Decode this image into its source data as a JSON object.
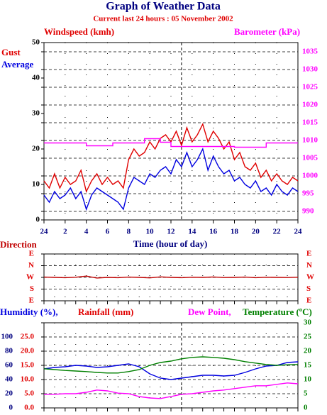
{
  "title": "Graph of Weather Data",
  "subtitle": "Current last 24 hours : 05 November 2002",
  "chart_data": [
    {
      "type": "line",
      "ylabel": "Windspeed (kmh)",
      "xlabel": "Time (hour of day)",
      "xlim": [
        0,
        24
      ],
      "xticks": [
        {
          "value": 0,
          "label": "24"
        },
        2,
        4,
        6,
        8,
        10,
        12,
        14,
        16,
        18,
        20,
        22,
        {
          "value": 24,
          "label": "24"
        }
      ],
      "ylim": [
        0,
        50
      ],
      "yticks": [
        0,
        10,
        20,
        30,
        40,
        50
      ],
      "y2lim": [
        987.6,
        1037.6
      ],
      "y2ticks": [
        990,
        995,
        1000,
        1005,
        1010,
        1015,
        1020,
        1025,
        1030,
        1035
      ],
      "grid": true,
      "marker_x": 13,
      "x": [
        0,
        0.5,
        1,
        1.5,
        2,
        2.5,
        3,
        3.5,
        4,
        4.5,
        5,
        5.5,
        6,
        6.5,
        7,
        7.5,
        8,
        8.5,
        9,
        9.5,
        10,
        10.5,
        11,
        11.5,
        12,
        12.5,
        13,
        13.5,
        14,
        14.5,
        15,
        15.5,
        16,
        16.5,
        17,
        17.5,
        18,
        18.5,
        19,
        19.5,
        20,
        20.5,
        21,
        21.5,
        22,
        22.5,
        23,
        23.5,
        24
      ],
      "series": [
        {
          "name": "Gust",
          "color": "#e00000",
          "values": [
            11,
            9,
            13,
            9,
            12,
            10,
            11,
            14,
            8,
            11,
            13,
            10,
            12,
            10,
            11,
            9,
            17,
            20,
            18,
            19,
            22,
            20,
            23,
            24,
            22,
            25,
            21,
            26,
            22,
            24,
            27,
            22,
            25,
            23,
            20,
            22,
            17,
            19,
            15,
            14,
            16,
            12,
            14,
            11,
            13,
            11,
            10,
            12,
            11
          ]
        },
        {
          "name": "Average",
          "color": "#0000e0",
          "values": [
            7,
            5,
            8,
            6,
            7,
            9,
            6,
            8,
            3,
            7,
            9,
            8,
            7,
            6,
            5,
            3,
            9,
            12,
            11,
            10,
            13,
            12,
            14,
            15,
            13,
            17,
            15,
            19,
            15,
            17,
            20,
            14,
            18,
            15,
            13,
            14,
            11,
            12,
            10,
            9,
            11,
            8,
            9,
            7,
            10,
            8,
            7,
            9,
            8
          ]
        },
        {
          "name": "Barometer (kPa)",
          "color": "#ff00ff",
          "axis": "y2",
          "x": [
            0,
            4,
            4,
            6.5,
            6.5,
            9.5,
            9.5,
            11,
            11,
            12,
            12,
            18,
            18,
            21,
            21,
            24
          ],
          "values": [
            1009.3,
            1009.3,
            1008.5,
            1008.5,
            1009.3,
            1009.3,
            1010.5,
            1010.5,
            1009.5,
            1009.5,
            1008.3,
            1008.3,
            1008.1,
            1008.1,
            1009.3,
            1009.3
          ]
        }
      ]
    },
    {
      "type": "line",
      "xlim": [
        0,
        24
      ],
      "xticks": [
        0,
        1,
        2,
        3,
        4,
        5,
        6,
        7,
        8,
        9,
        10,
        11,
        12,
        13,
        14,
        15,
        16,
        17,
        18,
        19,
        20,
        21,
        22,
        23,
        24
      ],
      "ylim": [
        90,
        450
      ],
      "yticks": [
        {
          "value": 90,
          "label": "E"
        },
        {
          "value": 180,
          "label": "S"
        },
        {
          "value": 270,
          "label": "W"
        },
        {
          "value": 360,
          "label": "N"
        },
        {
          "value": 450,
          "label": "E"
        }
      ],
      "grid": true,
      "x": [
        0,
        1,
        2,
        3,
        4,
        5,
        6,
        7,
        8,
        9,
        10,
        11,
        12,
        13,
        14,
        15,
        16,
        17,
        18,
        19,
        20,
        21,
        22,
        23,
        24
      ],
      "series": [
        {
          "name": "Direction",
          "color": "#c00000",
          "values": [
            272,
            270,
            268,
            271,
            280,
            265,
            270,
            268,
            272,
            270,
            266,
            274,
            270,
            268,
            271,
            270,
            273,
            269,
            270,
            272,
            268,
            271,
            270,
            269,
            271
          ]
        }
      ]
    },
    {
      "type": "line",
      "xlim": [
        0,
        24
      ],
      "xticks": [
        0,
        1,
        2,
        3,
        4,
        5,
        6,
        7,
        8,
        9,
        10,
        11,
        12,
        13,
        14,
        15,
        16,
        17,
        18,
        19,
        20,
        21,
        22,
        23,
        24
      ],
      "ylim": [
        0,
        120
      ],
      "yticks": [
        0,
        20,
        40,
        60,
        80,
        100
      ],
      "y2label": "Rainfall (mm)",
      "y2lim": [
        0,
        30
      ],
      "y2ticks": [
        {
          "value": 0,
          "label": "0.0"
        },
        {
          "value": 5,
          "label": "5.0"
        },
        {
          "value": 10,
          "label": "10.0"
        },
        {
          "value": 15,
          "label": "15.0"
        },
        {
          "value": 20,
          "label": "20.0"
        },
        {
          "value": 25,
          "label": "25.0"
        }
      ],
      "y3lim": [
        0,
        30
      ],
      "y3ticks": [
        0,
        5,
        10,
        15,
        20,
        25,
        30
      ],
      "grid": true,
      "marker_x": 13,
      "x": [
        0,
        1,
        2,
        3,
        4,
        5,
        6,
        7,
        8,
        9,
        10,
        11,
        12,
        13,
        14,
        15,
        16,
        17,
        18,
        19,
        20,
        21,
        22,
        23,
        24
      ],
      "series": [
        {
          "name": "Humidity (%),",
          "color": "#0000e0",
          "values": [
            55,
            57,
            58,
            60,
            59,
            57,
            58,
            60,
            62,
            58,
            48,
            42,
            40,
            42,
            44,
            46,
            46,
            45,
            46,
            50,
            55,
            59,
            60,
            64,
            65
          ]
        },
        {
          "name": "Dew Point,",
          "color": "#ff00ff",
          "axis": "y3",
          "values": [
            4.8,
            4.8,
            5,
            5,
            5.5,
            6.3,
            6,
            5.2,
            5,
            4,
            3.5,
            3.3,
            4,
            4.8,
            5,
            5.5,
            6,
            6.3,
            6.8,
            7.3,
            7.8,
            7.8,
            8.3,
            8.8,
            8.5
          ]
        },
        {
          "name": "Temperature (ºC)",
          "color": "#008000",
          "axis": "y3",
          "values": [
            13.8,
            13.5,
            13.2,
            13,
            12.8,
            12.5,
            12.3,
            12.3,
            12.8,
            13.5,
            15,
            16,
            16.5,
            17.3,
            17.8,
            18,
            17.8,
            17.5,
            17,
            16.3,
            15.8,
            15.3,
            15,
            15.2,
            15.3
          ]
        }
      ]
    }
  ]
}
